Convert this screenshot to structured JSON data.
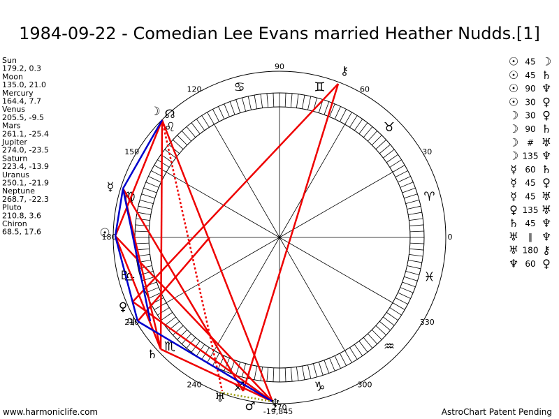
{
  "header": {
    "title": "1984-09-22 - Comedian Lee Evans married Heather Nudds.[1]"
  },
  "planets": [
    {
      "name": "Sun",
      "coords": "179.2, 0.3"
    },
    {
      "name": "Moon",
      "coords": "135.0, 21.0"
    },
    {
      "name": "Mercury",
      "coords": "164.4, 7.7"
    },
    {
      "name": "Venus",
      "coords": "205.5, -9.5"
    },
    {
      "name": "Mars",
      "coords": "261.1, -25.4"
    },
    {
      "name": "Jupiter",
      "coords": "274.0, -23.5"
    },
    {
      "name": "Saturn",
      "coords": "223.4, -13.9"
    },
    {
      "name": "Uranus",
      "coords": "250.1, -21.9"
    },
    {
      "name": "Neptune",
      "coords": "268.7, -22.3"
    },
    {
      "name": "Pluto",
      "coords": "210.8, 3.6"
    },
    {
      "name": "Chiron",
      "coords": "68.5, 17.6"
    }
  ],
  "aspects": [
    [
      "☉",
      "45",
      "☽"
    ],
    [
      "☉",
      "45",
      "♄"
    ],
    [
      "☉",
      "90",
      "♆"
    ],
    [
      "☉",
      "30",
      "♀"
    ],
    [
      "☽",
      "30",
      "♀"
    ],
    [
      "☽",
      "90",
      "♄"
    ],
    [
      "☽",
      "#",
      "♅"
    ],
    [
      "☽",
      "135",
      "♆"
    ],
    [
      "☿",
      "60",
      "♄"
    ],
    [
      "☿",
      "45",
      "♀"
    ],
    [
      "☿",
      "45",
      "♅"
    ],
    [
      "♀",
      "135",
      "♅"
    ],
    [
      "♄",
      "45",
      "♆"
    ],
    [
      "♅",
      "‖",
      "♆"
    ],
    [
      "♅",
      "180",
      "⚷"
    ],
    [
      "♆",
      "60",
      "♀"
    ]
  ],
  "wheel": {
    "degree_labels": [
      "0",
      "30",
      "60",
      "90",
      "120",
      "150",
      "180",
      "210",
      "240",
      "270",
      "300",
      "330"
    ],
    "signs": [
      "♈",
      "♉",
      "♊",
      "♋",
      "♌",
      "♍",
      "♎",
      "♏",
      "♐",
      "♑",
      "♒",
      "♓"
    ],
    "planet_glyphs": {
      "moon": "☽",
      "node": "☊",
      "mercury": "☿",
      "sun": "☉",
      "pluto": "♇",
      "venus": "♀",
      "jupiter": "♃",
      "saturn": "♄",
      "uranus": "♅",
      "mars": "♂",
      "neptune": "♆",
      "chiron": "⚷"
    },
    "bottom_note": "-19,845"
  },
  "footer": {
    "left": "www.harmoniclife.com",
    "right": "AstroChart Patent Pending"
  }
}
